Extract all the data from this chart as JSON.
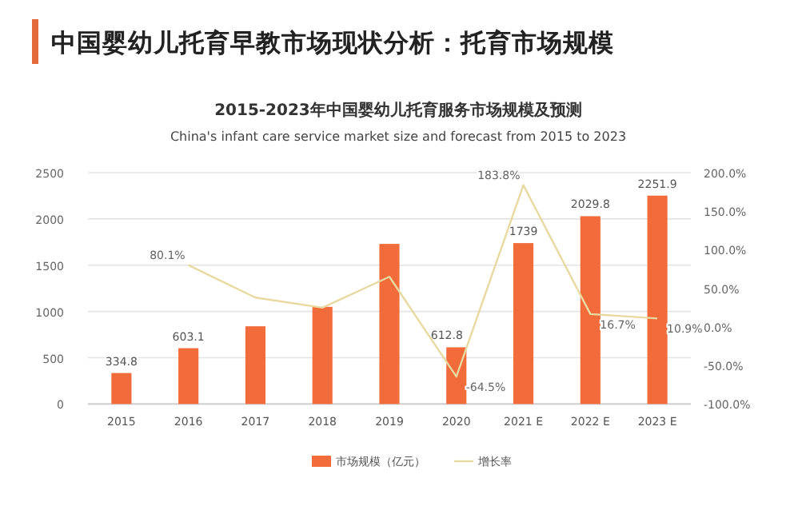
{
  "chart_data": {
    "type": "bar",
    "title": "中国婴幼儿托育早教市场现状分析：托育市场规模",
    "subtitle": "2015-2023年中国婴幼儿托育服务市场规模及预测",
    "annotations": [
      "China's infant care service market size and forecast from 2015 to 2023"
    ],
    "categories": [
      "2015",
      "2016",
      "2017",
      "2018",
      "2019",
      "2020",
      "2021 E",
      "2022 E",
      "2023 E"
    ],
    "series": [
      {
        "name": "市场规模（亿元）",
        "color": "#f26b3a",
        "values": [
          334.8,
          603.1,
          840,
          1050,
          1730,
          612.8,
          1739,
          2029.8,
          2251.9
        ],
        "value_labels": [
          "334.8",
          "603.1",
          null,
          null,
          null,
          "612.8",
          "1739",
          "2029.8",
          "2251.9"
        ]
      },
      {
        "name": "增长率",
        "type": "line",
        "axis": "y2",
        "color": "#e8d9a0",
        "values": [
          null,
          80.1,
          38,
          25,
          65,
          -64.5,
          183.8,
          16.7,
          10.9
        ],
        "value_labels": [
          null,
          "80.1%",
          null,
          null,
          null,
          "-64.5%",
          "183.8%",
          "16.7%",
          "10.9%"
        ]
      }
    ],
    "ylim": [
      0,
      2500
    ],
    "yticks": [
      0,
      500,
      1000,
      1500,
      2000,
      2500
    ],
    "y2lim": [
      -100,
      200
    ],
    "y2ticks": [
      {
        "value": -100,
        "label": "-100.0%"
      },
      {
        "value": -50,
        "label": "-50.0%"
      },
      {
        "value": 0,
        "label": "0.0%"
      },
      {
        "value": 50,
        "label": "50.0%"
      },
      {
        "value": 100,
        "label": "100.0%"
      },
      {
        "value": 150,
        "label": "150.0%"
      },
      {
        "value": 200,
        "label": "200.0%"
      }
    ],
    "grid": "y",
    "legend": "bottom",
    "marker": "none",
    "line_style": "solid"
  }
}
